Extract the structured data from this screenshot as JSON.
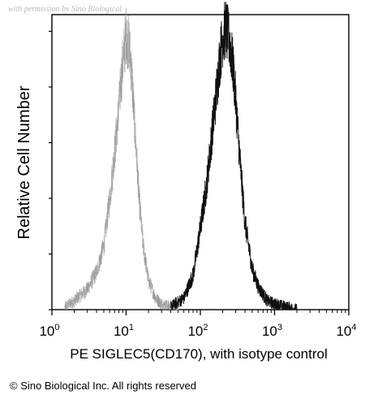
{
  "watermark": "with permission by Sino Biological",
  "copyright": "© Sino Biological Inc. All rights reserved",
  "chart_data": {
    "type": "line",
    "title": "",
    "xlabel": "PE SIGLEC5(CD170), with isotype control",
    "ylabel": "Relative Cell Number",
    "x_scale": "log",
    "xlim": [
      1,
      10000
    ],
    "ylim": [
      0,
      100
    ],
    "x_ticks": [
      {
        "base": "10",
        "exp": "0",
        "value": 1
      },
      {
        "base": "10",
        "exp": "1",
        "value": 10
      },
      {
        "base": "10",
        "exp": "2",
        "value": 100
      },
      {
        "base": "10",
        "exp": "3",
        "value": 1000
      },
      {
        "base": "10",
        "exp": "4",
        "value": 10000
      }
    ],
    "grid": false,
    "series": [
      {
        "role": "isotype control",
        "color": "#9a9a9a",
        "x": [
          1.5,
          2,
          3,
          4,
          5,
          6,
          7,
          8,
          9,
          10,
          11,
          12,
          13,
          15,
          17,
          20,
          25,
          30,
          40,
          50
        ],
        "y": [
          1,
          3,
          7,
          13,
          22,
          38,
          54,
          70,
          85,
          95,
          91,
          80,
          64,
          38,
          22,
          10,
          4,
          2,
          1,
          0
        ]
      },
      {
        "role": "SIGLEC5 (CD170)",
        "color": "#111111",
        "x": [
          40,
          60,
          80,
          100,
          120,
          140,
          160,
          180,
          200,
          220,
          250,
          280,
          300,
          350,
          400,
          500,
          600,
          800,
          1000,
          2000
        ],
        "y": [
          1,
          4,
          12,
          28,
          42,
          58,
          72,
          85,
          94,
          97,
          92,
          82,
          72,
          48,
          30,
          14,
          8,
          3,
          2,
          0
        ]
      }
    ]
  }
}
